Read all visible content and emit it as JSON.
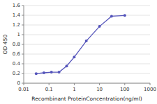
{
  "chart_data": {
    "type": "line",
    "x": [
      0.031,
      0.063,
      0.125,
      0.25,
      0.5,
      1.0,
      3.0,
      10.0,
      30.0,
      100.0
    ],
    "values": [
      0.197,
      0.214,
      0.228,
      0.228,
      0.353,
      0.538,
      0.87,
      1.17,
      1.38,
      1.395
    ],
    "color": "#5555bb",
    "marker": "circle",
    "xlabel": "Recombinant ProteinConcentration(ng/ml)",
    "ylabel": "OD 450",
    "log": "x",
    "xlim": [
      0.01,
      1000
    ],
    "xticks": [
      0.01,
      0.1,
      1,
      10,
      100,
      1000
    ],
    "ylim": [
      0,
      1.6
    ],
    "yticks": [
      0,
      0.2,
      0.4,
      0.6,
      0.8,
      1,
      1.2,
      1.4,
      1.6
    ],
    "grid": true
  }
}
